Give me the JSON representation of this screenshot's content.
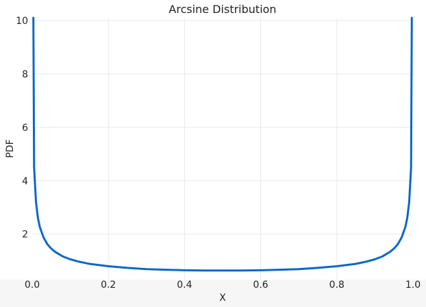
{
  "chart_data": {
    "type": "line",
    "title": "Arcsine Distribution",
    "xlabel": "X",
    "ylabel": "PDF",
    "xlim": [
      0,
      1
    ],
    "ylim": [
      0.3,
      10.1
    ],
    "x_ticks": [
      0.0,
      0.2,
      0.4,
      0.6,
      0.8,
      1.0
    ],
    "x_tick_labels": [
      "0.0",
      "0.2",
      "0.4",
      "0.6",
      "0.8",
      "1.0"
    ],
    "y_ticks": [
      2,
      4,
      6,
      8,
      10
    ],
    "y_tick_labels": [
      "2",
      "4",
      "6",
      "8",
      "10"
    ],
    "grid": true,
    "series": [
      {
        "color": "#0868c8",
        "x": [
          0.0031,
          0.005,
          0.01,
          0.015,
          0.02,
          0.03,
          0.04,
          0.05,
          0.06,
          0.08,
          0.1,
          0.12,
          0.15,
          0.2,
          0.25,
          0.3,
          0.35,
          0.4,
          0.45,
          0.5,
          0.55,
          0.6,
          0.65,
          0.7,
          0.75,
          0.8,
          0.85,
          0.88,
          0.9,
          0.92,
          0.94,
          0.95,
          0.96,
          0.97,
          0.98,
          0.985,
          0.99,
          0.995,
          0.9969
        ],
        "y": [
          10.1,
          4.5,
          3.2,
          2.61,
          2.27,
          1.87,
          1.62,
          1.46,
          1.34,
          1.17,
          1.06,
          0.98,
          0.89,
          0.8,
          0.74,
          0.69,
          0.67,
          0.65,
          0.64,
          0.64,
          0.64,
          0.65,
          0.67,
          0.69,
          0.74,
          0.8,
          0.89,
          0.98,
          1.06,
          1.17,
          1.34,
          1.46,
          1.62,
          1.87,
          2.27,
          2.61,
          3.2,
          4.5,
          10.1
        ]
      }
    ]
  }
}
